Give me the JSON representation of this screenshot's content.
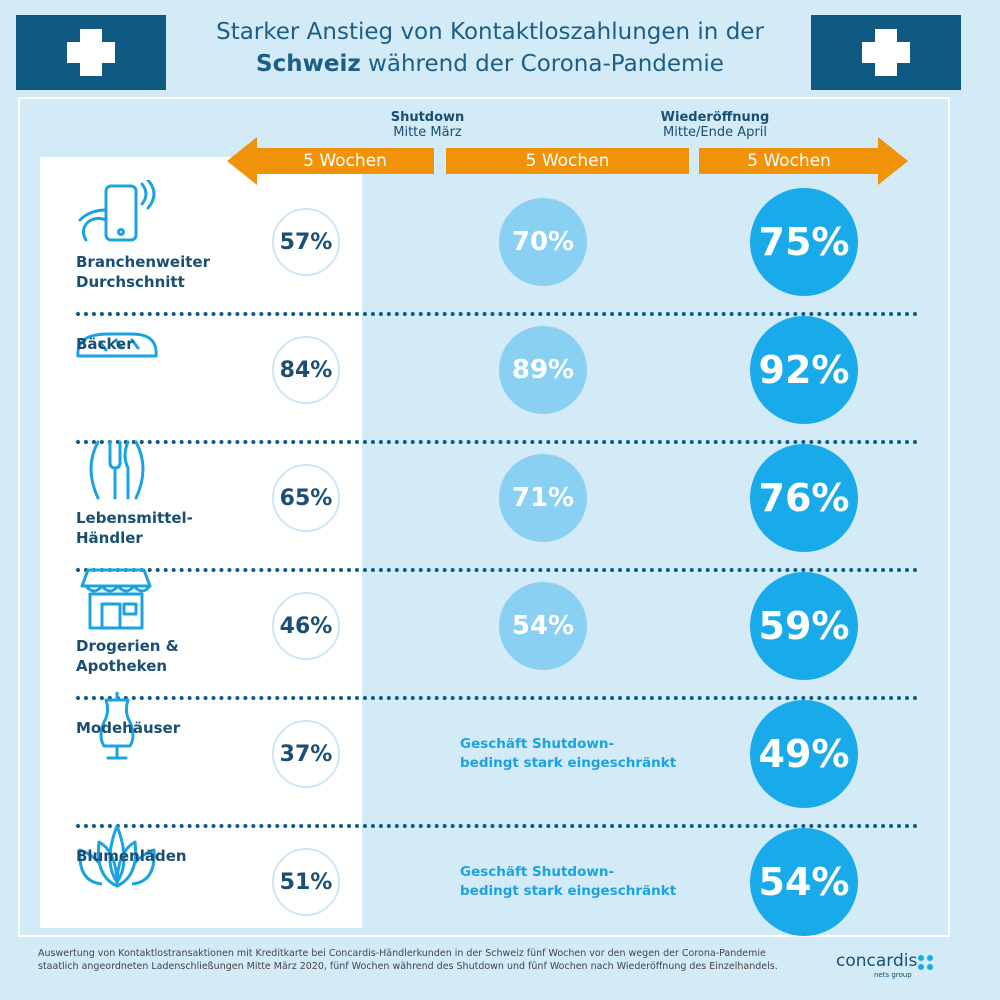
{
  "title": {
    "line1": "Starker Anstieg von Kontaktloszahlungen in der",
    "line2_bold": "Schweiz",
    "line2_rest": " während der Corona-Pandemie"
  },
  "phases": [
    {
      "title": "Shutdown",
      "subtitle": "Mitte März"
    },
    {
      "title": "Wiederöffnung",
      "subtitle": "Mitte/Ende April"
    }
  ],
  "arrows": [
    "5 Wochen",
    "5 Wochen",
    "5 Wochen"
  ],
  "chart_data": {
    "type": "table",
    "periods": [
      "5 Wochen vor Shutdown",
      "5 Wochen Shutdown",
      "5 Wochen nach Wiederöffnung"
    ],
    "rows": [
      {
        "category": "Branchenweiter Durchschnitt",
        "label_lines": [
          "Branchenweiter",
          "Durchschnitt"
        ],
        "icon": "smartphone-contactless-icon",
        "before": "57%",
        "shutdown": "70%",
        "after": "75%"
      },
      {
        "category": "Bäcker",
        "label_lines": [
          "Bäcker"
        ],
        "icon": "bread-icon",
        "before": "84%",
        "shutdown": "89%",
        "after": "92%"
      },
      {
        "category": "Lebensmittel-Händler",
        "label_lines": [
          "Lebensmittel-",
          "Händler"
        ],
        "icon": "cutlery-icon",
        "before": "65%",
        "shutdown": "71%",
        "after": "76%"
      },
      {
        "category": "Drogerien & Apotheken",
        "label_lines": [
          "Drogerien &",
          "Apotheken"
        ],
        "icon": "shop-icon",
        "before": "46%",
        "shutdown": "54%",
        "after": "59%"
      },
      {
        "category": "Modehäuser",
        "label_lines": [
          "Modehäuser"
        ],
        "icon": "dress-mannequin-icon",
        "before": "37%",
        "shutdown_note": [
          "Geschäft Shutdown-",
          "bedingt stark eingeschränkt"
        ],
        "after": "49%"
      },
      {
        "category": "Blumenläden",
        "label_lines": [
          "Blumenläden"
        ],
        "icon": "flower-icon",
        "before": "51%",
        "shutdown_note": [
          "Geschäft Shutdown-",
          "bedingt stark eingeschränkt"
        ],
        "after": "54%"
      }
    ]
  },
  "footer": "Auswertung von Kontaktlostransaktionen mit Kreditkarte bei Concardis-Händlerkunden in der Schweiz fünf Wochen vor den wegen der Corona-Pandemie staatlich angeordneten Ladenschließungen Mitte März 2020, fünf Wochen während des Shutdown und fünf Wochen nach Wiederöffnung des Einzelhandels.",
  "logo": {
    "name": "concardis",
    "sub": "nets group"
  },
  "colors": {
    "accent_orange": "#f0920a",
    "dark_blue": "#0e5a83",
    "light_circle": "#8ad0f3",
    "strong_circle": "#19aaea",
    "background": "#d3eaf7"
  }
}
